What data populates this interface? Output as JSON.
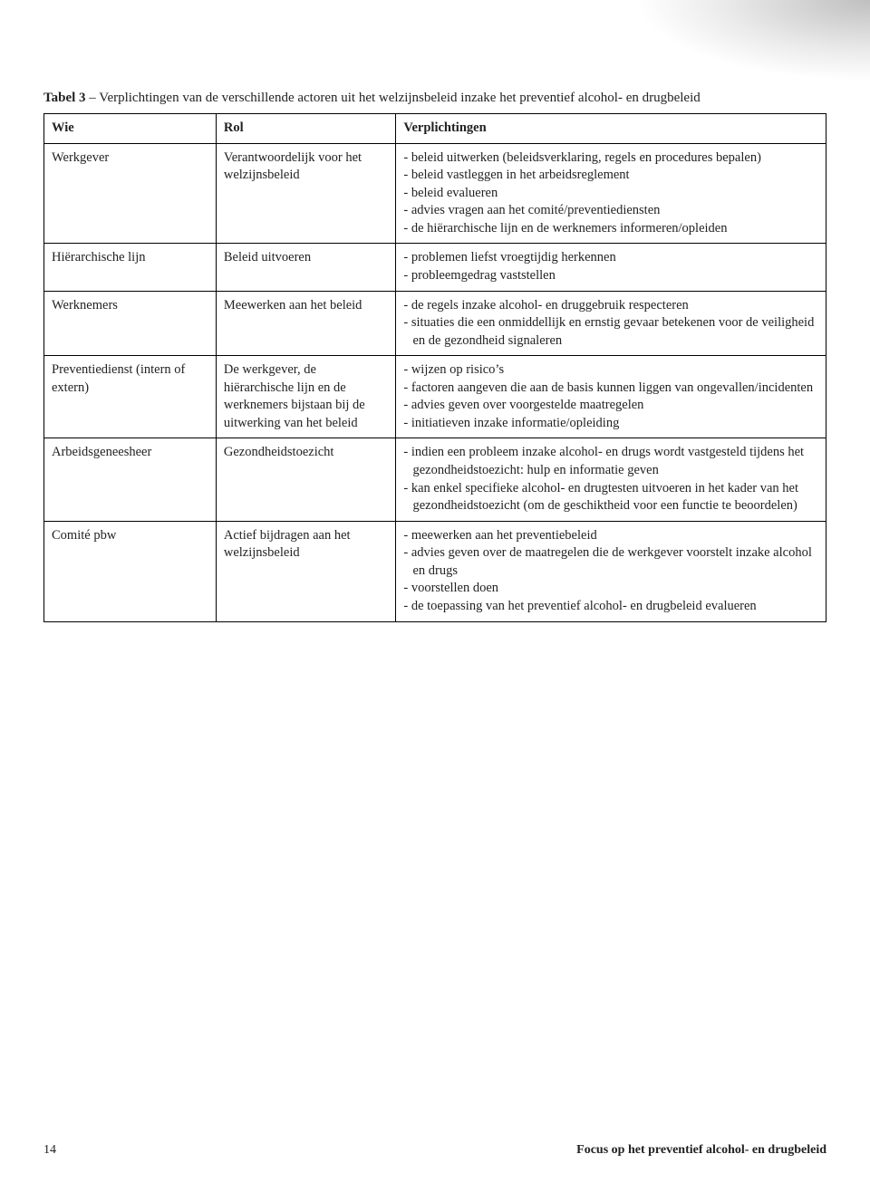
{
  "caption_label": "Tabel 3",
  "caption_text": " – Verplichtingen van de verschillende actoren uit het welzijnsbeleid inzake het preventief alcohol- en drugbeleid",
  "columns": [
    "Wie",
    "Rol",
    "Verplichtingen"
  ],
  "rows": [
    {
      "wie": "Werkgever",
      "rol": "Verantwoordelijk voor het welzijnsbeleid",
      "items": [
        {
          "type": "li",
          "text": "beleid uitwerken (beleidsverklaring, regels en procedures bepalen)"
        },
        {
          "type": "li",
          "text": "beleid vastleggen in het arbeidsreglement"
        },
        {
          "type": "li",
          "text": "beleid evalueren"
        },
        {
          "type": "li",
          "text": "advies vragen aan het comité/preventiediensten"
        },
        {
          "type": "li",
          "text": "de hiërarchische lijn en de werknemers informeren/opleiden"
        }
      ]
    },
    {
      "wie": "Hiërarchische lijn",
      "rol": "Beleid uitvoeren",
      "items": [
        {
          "type": "li",
          "text": "problemen liefst vroegtijdig herkennen"
        },
        {
          "type": "li",
          "text": "probleemgedrag vaststellen"
        }
      ]
    },
    {
      "wie": "Werknemers",
      "rol": "Meewerken aan het beleid",
      "items": [
        {
          "type": "li",
          "text": "de regels inzake alcohol- en druggebruik respecteren"
        },
        {
          "type": "li",
          "text": "situaties die een onmiddellijk en ernstig gevaar betekenen voor de veiligheid en de gezondheid signaleren"
        }
      ]
    },
    {
      "wie": "Preventiedienst (intern of extern)",
      "rol": "De werkgever, de hiërarchische lijn en de werknemers bijstaan bij de uitwerking van het beleid",
      "items": [
        {
          "type": "li",
          "text": "wijzen op risico’s"
        },
        {
          "type": "li",
          "text": "factoren aangeven die aan de basis kunnen liggen van ongevallen/incidenten"
        },
        {
          "type": "li",
          "text": "advies geven over voorgestelde maatregelen"
        },
        {
          "type": "li",
          "text": "initiatieven inzake informatie/opleiding"
        }
      ]
    },
    {
      "wie": "Arbeidsgeneesheer",
      "rol": "Gezondheidstoezicht",
      "items": [
        {
          "type": "li",
          "text": "indien een probleem inzake alcohol- en drugs wordt vastgesteld tijdens het gezondheidstoezicht: hulp en informatie geven"
        },
        {
          "type": "li",
          "text": "kan enkel specifieke alcohol- en drugtesten uitvoeren in het kader van het gezondheidstoezicht (om de geschiktheid voor een functie te beoordelen)"
        }
      ]
    },
    {
      "wie": "Comité pbw",
      "rol": "Actief bijdragen aan het welzijnsbeleid",
      "items": [
        {
          "type": "li",
          "text": "meewerken aan het preventiebeleid"
        },
        {
          "type": "li",
          "text": "advies geven over de maatregelen die de werkgever voorstelt inzake alcohol en drugs"
        },
        {
          "type": "li",
          "text": "voorstellen doen"
        },
        {
          "type": "li",
          "text": "de toepassing van het preventief alcohol- en drugbeleid evalueren"
        }
      ]
    }
  ],
  "footer": {
    "page_number": "14",
    "running_title": "Focus op het preventief alcohol- en drugbeleid"
  }
}
